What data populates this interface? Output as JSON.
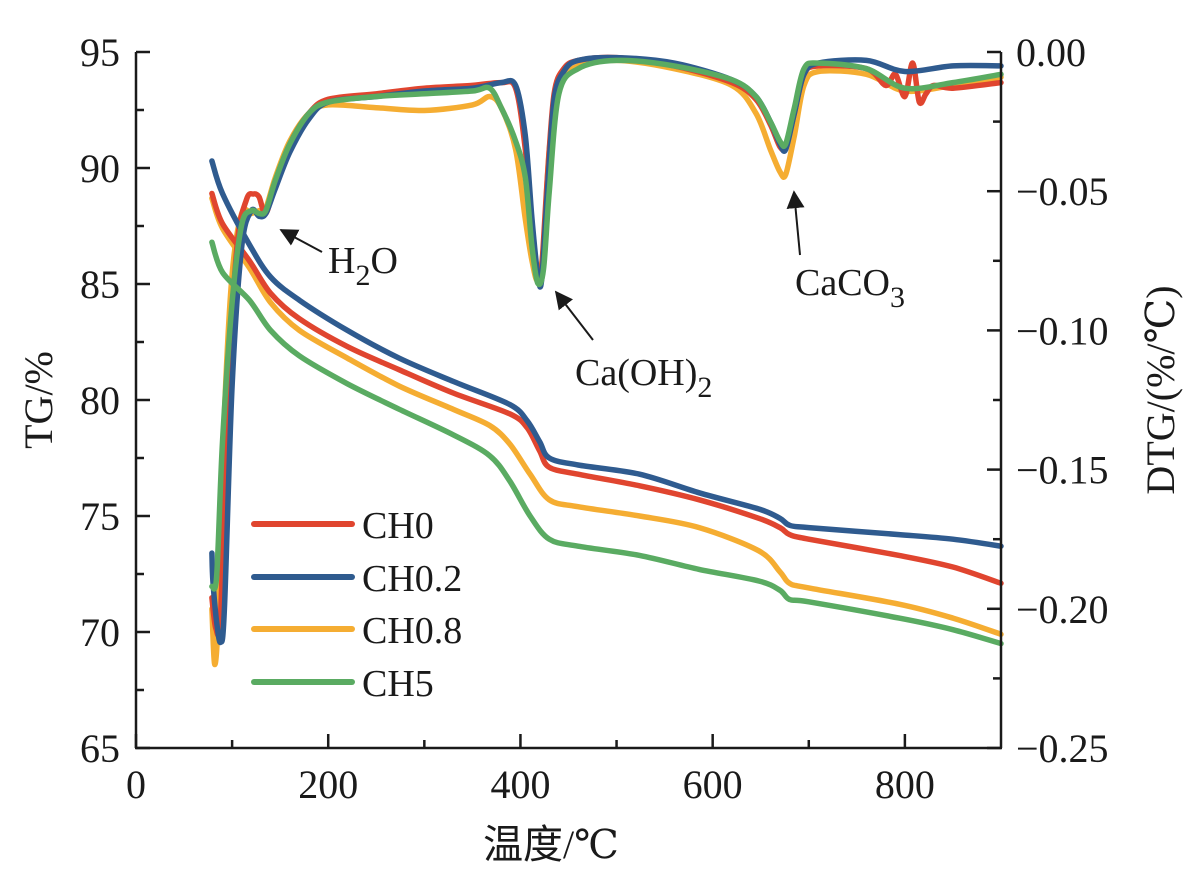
{
  "chart_data": {
    "type": "line",
    "title": "",
    "xlabel": "温度/℃",
    "ylabel_left": "TG/%",
    "ylabel_right": "DTG/(%/℃)",
    "xlim": [
      0,
      900
    ],
    "ylim_left": [
      65,
      95
    ],
    "ylim_right": [
      -0.25,
      0.0
    ],
    "x_ticks": [
      "0",
      "200",
      "400",
      "600",
      "800"
    ],
    "x_tick_values": [
      0,
      200,
      400,
      600,
      800
    ],
    "x_minor_tick_values": [
      100,
      300,
      500,
      700
    ],
    "y_left_ticks": [
      "65",
      "70",
      "75",
      "80",
      "85",
      "90",
      "95"
    ],
    "y_left_tick_values": [
      65,
      70,
      75,
      80,
      85,
      90,
      95
    ],
    "y_right_ticks": [
      "0.00",
      "−0.05",
      "−0.10",
      "−0.15",
      "−0.20",
      "−0.25"
    ],
    "y_right_tick_values": [
      0.0,
      -0.05,
      -0.1,
      -0.15,
      -0.2,
      -0.25
    ],
    "grid": false,
    "legend_position": "lower-left",
    "legend": [
      "CH0",
      "CH0.2",
      "CH0.8",
      "CH5"
    ],
    "colors": {
      "CH0": "#e0452f",
      "CH0.2": "#2f5b8f",
      "CH0.8": "#f5ad32",
      "CH5": "#5aab62"
    },
    "series": [
      {
        "name": "CH0",
        "axis": "left",
        "kind": "TG",
        "x": [
          79,
          90,
          118,
          140,
          170,
          220,
          274,
          330,
          389,
          407,
          420,
          430,
          460,
          524,
          586,
          648,
          670,
          680,
          700,
          794,
          850,
          900
        ],
        "y": [
          88.9,
          87.6,
          86.0,
          84.6,
          83.5,
          82.3,
          81.3,
          80.3,
          79.4,
          78.8,
          77.8,
          77.1,
          76.8,
          76.3,
          75.7,
          74.9,
          74.5,
          74.2,
          74.0,
          73.3,
          72.8,
          72.1
        ]
      },
      {
        "name": "CH0.2",
        "axis": "left",
        "kind": "TG",
        "x": [
          79,
          90,
          118,
          140,
          170,
          220,
          274,
          330,
          389,
          407,
          420,
          430,
          460,
          524,
          586,
          648,
          670,
          680,
          700,
          794,
          850,
          900
        ],
        "y": [
          90.3,
          88.9,
          86.7,
          85.3,
          84.3,
          83.0,
          81.8,
          80.8,
          79.8,
          79.1,
          78.2,
          77.5,
          77.2,
          76.8,
          76.0,
          75.3,
          74.9,
          74.6,
          74.5,
          74.2,
          74.0,
          73.7
        ]
      },
      {
        "name": "CH0.8",
        "axis": "left",
        "kind": "TG",
        "x": [
          79,
          90,
          118,
          140,
          170,
          220,
          274,
          330,
          368,
          389,
          410,
          430,
          460,
          524,
          586,
          648,
          670,
          680,
          700,
          794,
          850,
          900
        ],
        "y": [
          88.7,
          87.4,
          85.7,
          84.2,
          83.0,
          81.8,
          80.6,
          79.6,
          78.9,
          78.1,
          76.8,
          75.7,
          75.4,
          75.0,
          74.5,
          73.5,
          72.6,
          72.1,
          71.9,
          71.2,
          70.6,
          69.9
        ]
      },
      {
        "name": "CH5",
        "axis": "left",
        "kind": "TG",
        "x": [
          79,
          90,
          118,
          140,
          170,
          220,
          274,
          330,
          368,
          389,
          410,
          430,
          460,
          524,
          586,
          648,
          670,
          680,
          700,
          794,
          850,
          900
        ],
        "y": [
          86.8,
          85.5,
          84.3,
          83.0,
          81.9,
          80.7,
          79.6,
          78.5,
          77.6,
          76.5,
          75.0,
          74.0,
          73.7,
          73.3,
          72.7,
          72.2,
          71.8,
          71.4,
          71.3,
          70.6,
          70.1,
          69.5
        ]
      },
      {
        "name": "CH0",
        "axis": "right",
        "kind": "DTG",
        "x": [
          79,
          83,
          88,
          95,
          105,
          115,
          122,
          128,
          135,
          145,
          160,
          180,
          200,
          250,
          300,
          350,
          380,
          395,
          405,
          412,
          418,
          422,
          428,
          435,
          445,
          460,
          500,
          560,
          620,
          645,
          660,
          670,
          676,
          685,
          695,
          710,
          760,
          780,
          790,
          800,
          808,
          815,
          822,
          830,
          850,
          900
        ],
        "y": [
          -0.196,
          -0.207,
          -0.202,
          -0.13,
          -0.07,
          -0.053,
          -0.051,
          -0.052,
          -0.058,
          -0.047,
          -0.033,
          -0.022,
          -0.017,
          -0.015,
          -0.013,
          -0.012,
          -0.011,
          -0.013,
          -0.035,
          -0.065,
          -0.082,
          -0.078,
          -0.045,
          -0.015,
          -0.006,
          -0.003,
          -0.002,
          -0.005,
          -0.011,
          -0.017,
          -0.026,
          -0.034,
          -0.034,
          -0.022,
          -0.008,
          -0.005,
          -0.006,
          -0.012,
          -0.008,
          -0.016,
          -0.004,
          -0.018,
          -0.015,
          -0.012,
          -0.013,
          -0.011
        ]
      },
      {
        "name": "CH0.2",
        "axis": "right",
        "kind": "DTG",
        "x": [
          79,
          80,
          84,
          88,
          92,
          100,
          110,
          120,
          128,
          135,
          145,
          160,
          180,
          200,
          250,
          300,
          350,
          380,
          395,
          405,
          412,
          418,
          422,
          428,
          435,
          445,
          460,
          500,
          560,
          620,
          645,
          660,
          670,
          676,
          685,
          695,
          710,
          760,
          800,
          850,
          900
        ],
        "y": [
          -0.18,
          -0.19,
          -0.205,
          -0.212,
          -0.2,
          -0.12,
          -0.07,
          -0.057,
          -0.059,
          -0.058,
          -0.049,
          -0.036,
          -0.024,
          -0.018,
          -0.016,
          -0.014,
          -0.013,
          -0.011,
          -0.012,
          -0.03,
          -0.06,
          -0.08,
          -0.082,
          -0.05,
          -0.017,
          -0.007,
          -0.003,
          -0.002,
          -0.004,
          -0.01,
          -0.016,
          -0.025,
          -0.033,
          -0.035,
          -0.022,
          -0.008,
          -0.004,
          -0.003,
          -0.007,
          -0.005,
          -0.005
        ]
      },
      {
        "name": "CH0.8",
        "axis": "right",
        "kind": "DTG",
        "x": [
          79,
          82,
          86,
          92,
          100,
          110,
          120,
          128,
          135,
          145,
          160,
          180,
          200,
          250,
          300,
          350,
          368,
          380,
          395,
          405,
          412,
          418,
          424,
          430,
          440,
          460,
          500,
          560,
          620,
          645,
          660,
          670,
          676,
          685,
          695,
          710,
          760,
          800,
          850,
          900
        ],
        "y": [
          -0.2,
          -0.22,
          -0.2,
          -0.13,
          -0.08,
          -0.058,
          -0.058,
          -0.057,
          -0.056,
          -0.045,
          -0.032,
          -0.022,
          -0.019,
          -0.02,
          -0.021,
          -0.019,
          -0.016,
          -0.02,
          -0.035,
          -0.06,
          -0.075,
          -0.082,
          -0.07,
          -0.035,
          -0.012,
          -0.005,
          -0.003,
          -0.006,
          -0.012,
          -0.022,
          -0.035,
          -0.043,
          -0.044,
          -0.03,
          -0.012,
          -0.007,
          -0.008,
          -0.014,
          -0.012,
          -0.009
        ]
      },
      {
        "name": "CH5",
        "axis": "right",
        "kind": "DTG",
        "x": [
          79,
          84,
          90,
          100,
          110,
          120,
          128,
          135,
          145,
          160,
          180,
          200,
          250,
          300,
          350,
          368,
          380,
          395,
          405,
          412,
          418,
          424,
          430,
          440,
          460,
          500,
          560,
          620,
          645,
          660,
          670,
          676,
          685,
          695,
          710,
          760,
          800,
          850,
          900
        ],
        "y": [
          -0.192,
          -0.188,
          -0.14,
          -0.09,
          -0.062,
          -0.057,
          -0.058,
          -0.057,
          -0.046,
          -0.033,
          -0.022,
          -0.018,
          -0.016,
          -0.015,
          -0.014,
          -0.013,
          -0.02,
          -0.032,
          -0.045,
          -0.07,
          -0.083,
          -0.078,
          -0.05,
          -0.015,
          -0.006,
          -0.003,
          -0.005,
          -0.01,
          -0.016,
          -0.025,
          -0.032,
          -0.033,
          -0.02,
          -0.006,
          -0.004,
          -0.006,
          -0.013,
          -0.011,
          -0.008
        ]
      }
    ],
    "annotations": [
      {
        "text": "H",
        "sub": "2",
        "tail": "O",
        "label": "H2O",
        "target_x": 130,
        "target_axis": "right",
        "target_y": -0.064
      },
      {
        "text": "Ca(OH)",
        "sub": "2",
        "tail": "",
        "label": "Ca(OH)2",
        "target_x": 436,
        "target_axis": "right",
        "target_y": -0.085
      },
      {
        "text": "CaCO",
        "sub": "3",
        "tail": "",
        "label": "CaCO3",
        "target_x": 683,
        "target_axis": "right",
        "target_y": -0.049
      }
    ]
  }
}
